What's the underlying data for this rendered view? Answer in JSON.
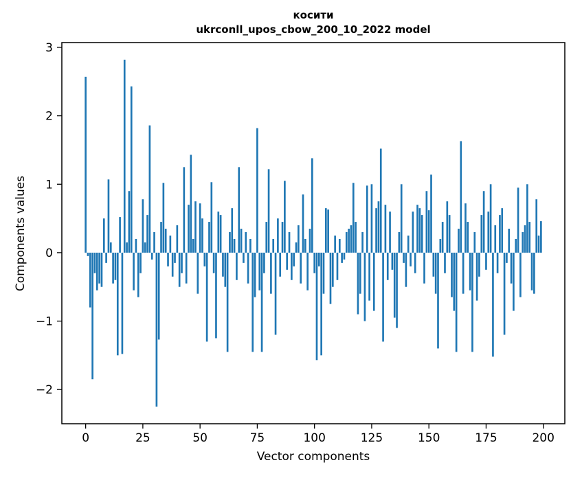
{
  "figure": {
    "title": "косити",
    "subtitle": "ukrconll_upos_cbow_200_10_2022 model",
    "xlabel": "Vector components",
    "ylabel": "Components values"
  },
  "chart_data": {
    "type": "bar",
    "title": "косити",
    "subtitle": "ukrconll_upos_cbow_200_10_2022 model",
    "xlabel": "Vector components",
    "ylabel": "Components values",
    "bar_color": "#1f77b4",
    "background_color": "#ffffff",
    "grid": false,
    "xlim": [
      -10.4,
      209.4
    ],
    "ylim": [
      -2.5,
      3.07
    ],
    "x_ticks": [
      0,
      25,
      50,
      75,
      100,
      125,
      150,
      175,
      200
    ],
    "x_tick_labels": [
      "0",
      "25",
      "50",
      "75",
      "100",
      "125",
      "150",
      "175",
      "200"
    ],
    "y_ticks": [
      -2,
      -1,
      0,
      1,
      2,
      3
    ],
    "y_tick_labels": [
      "−2",
      "−1",
      "0",
      "1",
      "2",
      "3"
    ],
    "values": [
      2.57,
      -0.05,
      -0.8,
      -1.85,
      -0.3,
      -0.55,
      -0.45,
      -0.5,
      0.5,
      -0.15,
      1.07,
      0.15,
      -0.45,
      -0.4,
      -1.5,
      0.52,
      -1.48,
      2.82,
      0.15,
      0.9,
      2.43,
      -0.55,
      0.2,
      -0.65,
      -0.3,
      0.78,
      0.15,
      0.55,
      1.86,
      -0.1,
      0.3,
      -2.25,
      -1.27,
      0.45,
      1.02,
      0.35,
      -0.2,
      0.25,
      -0.35,
      -0.15,
      0.4,
      -0.5,
      -0.3,
      1.25,
      -0.45,
      0.7,
      1.43,
      0.2,
      0.75,
      -0.6,
      0.72,
      0.5,
      -0.2,
      -1.3,
      0.45,
      1.03,
      -0.3,
      -1.25,
      0.6,
      0.55,
      -0.35,
      -0.5,
      -1.45,
      0.3,
      0.65,
      0.2,
      -0.4,
      1.25,
      0.35,
      -0.15,
      0.3,
      -0.45,
      0.2,
      -1.45,
      -0.65,
      1.82,
      -0.55,
      -1.45,
      -0.3,
      0.45,
      1.22,
      -0.6,
      0.2,
      -1.2,
      0.5,
      -0.35,
      0.45,
      1.05,
      -0.25,
      0.3,
      -0.4,
      -0.2,
      0.15,
      0.4,
      -0.45,
      0.85,
      0.2,
      -0.55,
      0.35,
      1.38,
      -0.3,
      -1.57,
      -0.2,
      -1.5,
      -0.6,
      0.65,
      0.63,
      -0.75,
      -0.5,
      0.25,
      -0.4,
      0.2,
      -0.15,
      -0.1,
      0.3,
      0.35,
      0.4,
      1.02,
      0.45,
      -0.9,
      -0.6,
      0.3,
      -1.0,
      0.98,
      -0.7,
      1.0,
      -0.85,
      0.65,
      0.75,
      1.52,
      -1.3,
      0.7,
      -0.4,
      0.6,
      -0.25,
      -0.95,
      -1.1,
      0.3,
      1.0,
      -0.15,
      -0.5,
      0.25,
      -0.2,
      0.6,
      -0.3,
      0.7,
      0.65,
      0.55,
      -0.45,
      0.9,
      0.62,
      1.14,
      -0.35,
      -0.6,
      -1.4,
      0.2,
      0.45,
      -0.3,
      0.75,
      0.55,
      -0.65,
      -0.85,
      -1.45,
      0.35,
      1.63,
      -0.6,
      0.72,
      0.45,
      -0.55,
      -1.45,
      0.3,
      -0.7,
      -0.35,
      0.55,
      0.9,
      -0.25,
      0.6,
      1.0,
      -1.52,
      0.4,
      -0.3,
      0.55,
      0.65,
      -1.2,
      -0.15,
      0.35,
      -0.45,
      -0.85,
      0.2,
      0.95,
      -0.65,
      0.3,
      0.4,
      1.0,
      0.45,
      -0.55,
      -0.6,
      0.78,
      0.25,
      0.46
    ]
  }
}
